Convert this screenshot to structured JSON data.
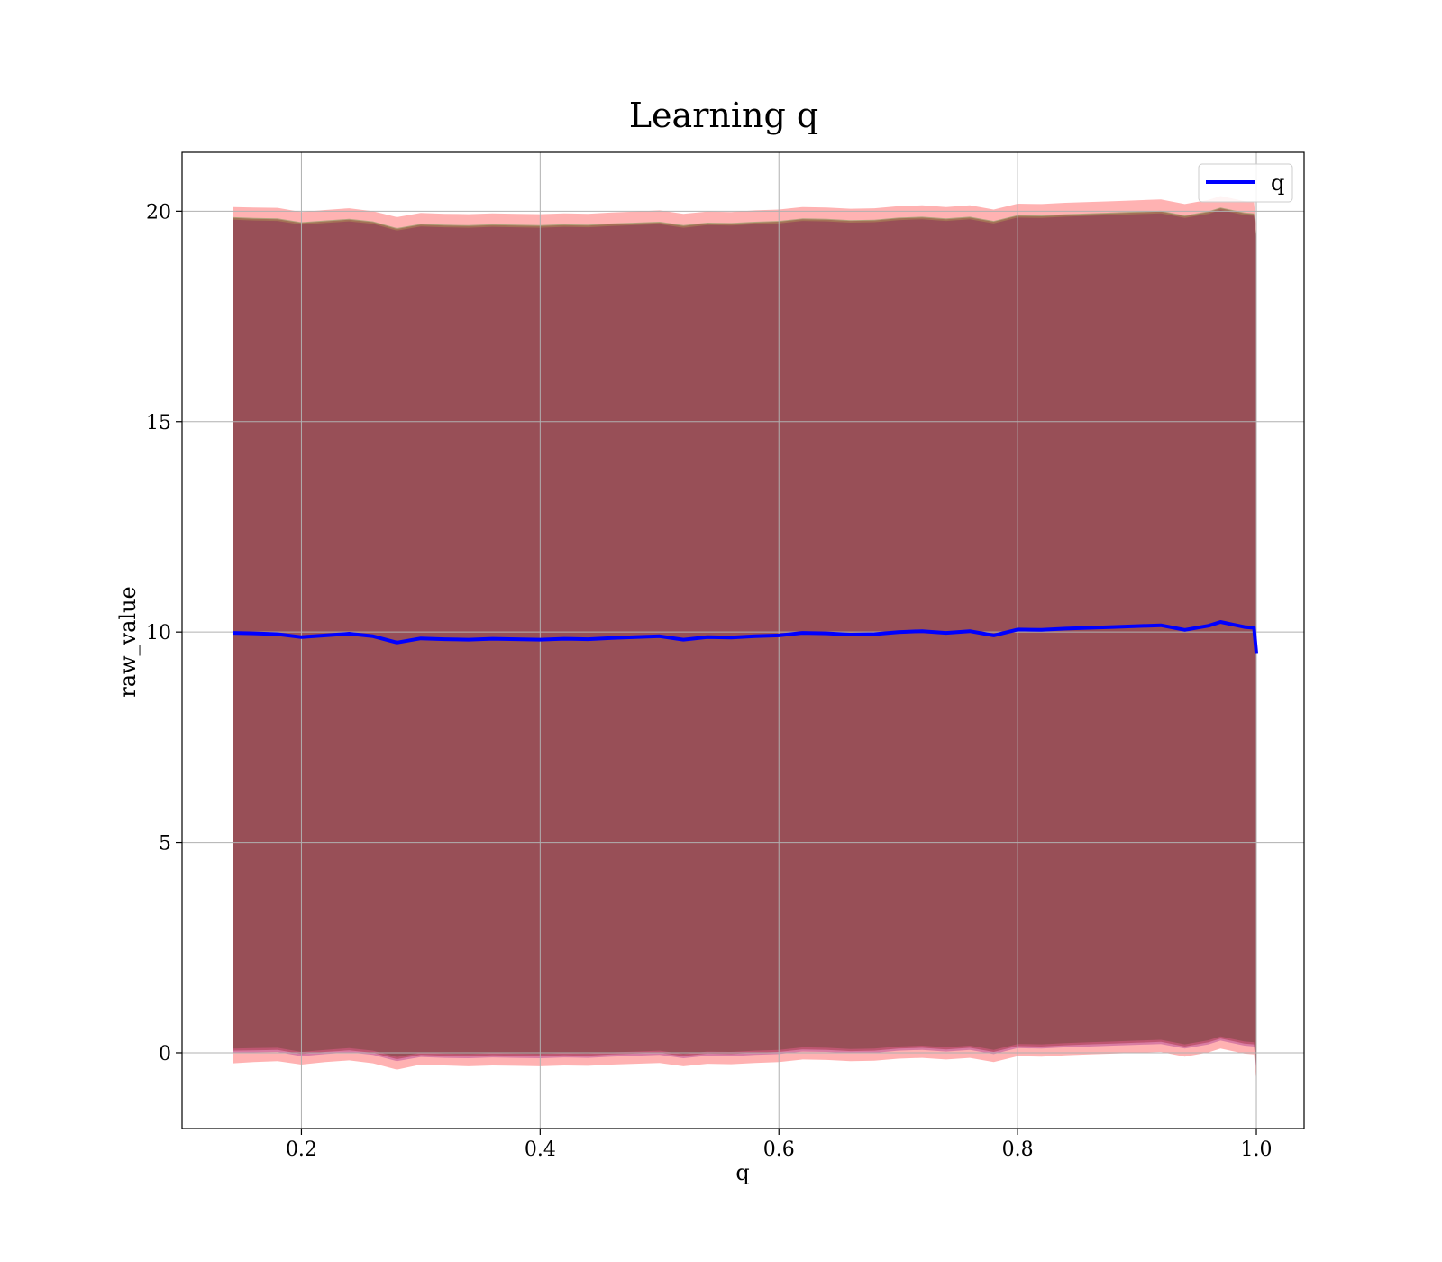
{
  "chart_data": {
    "type": "line",
    "title": "Learning q",
    "xlabel": "q",
    "ylabel": "raw_value",
    "xlim": [
      0.1,
      1.04
    ],
    "ylim": [
      -1.8,
      21.4
    ],
    "xticks": [
      0.2,
      0.4,
      0.6,
      0.8,
      1.0
    ],
    "xtick_labels": [
      "0.2",
      "0.4",
      "0.6",
      "0.8",
      "1.0"
    ],
    "yticks": [
      0,
      5,
      10,
      15,
      20
    ],
    "ytick_labels": [
      "0",
      "5",
      "10",
      "15",
      "20"
    ],
    "grid": true,
    "legend": {
      "position": "top-right",
      "entries": [
        "q"
      ]
    },
    "series": [
      {
        "name": "q",
        "color": "#0000ff",
        "x": [
          0.143,
          0.16,
          0.18,
          0.2,
          0.22,
          0.24,
          0.26,
          0.28,
          0.3,
          0.32,
          0.34,
          0.36,
          0.38,
          0.4,
          0.42,
          0.44,
          0.46,
          0.48,
          0.5,
          0.52,
          0.54,
          0.56,
          0.58,
          0.6,
          0.62,
          0.64,
          0.66,
          0.68,
          0.7,
          0.72,
          0.74,
          0.76,
          0.78,
          0.8,
          0.82,
          0.84,
          0.86,
          0.88,
          0.9,
          0.92,
          0.94,
          0.96,
          0.97,
          0.98,
          0.99,
          0.998,
          1.0
        ],
        "y": [
          9.98,
          9.97,
          9.95,
          9.88,
          9.92,
          9.96,
          9.9,
          9.75,
          9.85,
          9.83,
          9.82,
          9.84,
          9.83,
          9.82,
          9.84,
          9.83,
          9.86,
          9.88,
          9.9,
          9.82,
          9.88,
          9.87,
          9.9,
          9.92,
          9.98,
          9.97,
          9.94,
          9.95,
          10.0,
          10.02,
          9.98,
          10.02,
          9.92,
          10.06,
          10.05,
          10.08,
          10.1,
          10.12,
          10.14,
          10.16,
          10.05,
          10.15,
          10.24,
          10.18,
          10.12,
          10.1,
          9.5
        ]
      }
    ],
    "bands": [
      {
        "color": "#ff0000",
        "opacity": 0.3,
        "lower": [
          -0.25,
          -0.22,
          -0.2,
          -0.28,
          -0.22,
          -0.18,
          -0.25,
          -0.4,
          -0.28,
          -0.3,
          -0.32,
          -0.3,
          -0.31,
          -0.32,
          -0.3,
          -0.31,
          -0.28,
          -0.26,
          -0.24,
          -0.32,
          -0.26,
          -0.27,
          -0.24,
          -0.22,
          -0.16,
          -0.17,
          -0.2,
          -0.19,
          -0.14,
          -0.12,
          -0.16,
          -0.12,
          -0.22,
          -0.08,
          -0.09,
          -0.06,
          -0.04,
          -0.02,
          0.0,
          0.02,
          -0.09,
          0.01,
          0.1,
          0.04,
          -0.02,
          -0.04,
          -0.7
        ],
        "upper": [
          20.1,
          20.09,
          20.08,
          19.98,
          20.03,
          20.07,
          20.0,
          19.86,
          19.96,
          19.94,
          19.93,
          19.95,
          19.94,
          19.93,
          19.95,
          19.94,
          19.97,
          19.99,
          20.02,
          19.94,
          19.99,
          19.98,
          20.02,
          20.04,
          20.1,
          20.09,
          20.06,
          20.07,
          20.12,
          20.14,
          20.1,
          20.14,
          20.04,
          20.18,
          20.17,
          20.2,
          20.22,
          20.24,
          20.26,
          20.28,
          20.17,
          20.27,
          20.36,
          20.3,
          20.24,
          20.22,
          19.6
        ]
      },
      {
        "color": "#008000",
        "opacity": 0.3,
        "lower": [
          0.1,
          0.11,
          0.12,
          0.02,
          0.07,
          0.11,
          0.05,
          -0.1,
          0.0,
          -0.02,
          -0.03,
          -0.01,
          -0.02,
          -0.03,
          -0.01,
          -0.02,
          0.01,
          0.03,
          0.05,
          -0.03,
          0.03,
          0.02,
          0.05,
          0.07,
          0.13,
          0.12,
          0.09,
          0.1,
          0.15,
          0.17,
          0.13,
          0.17,
          0.07,
          0.21,
          0.2,
          0.23,
          0.25,
          0.27,
          0.29,
          0.31,
          0.2,
          0.3,
          0.39,
          0.33,
          0.27,
          0.25,
          -0.35
        ],
        "upper": [
          19.86,
          19.84,
          19.83,
          19.74,
          19.78,
          19.82,
          19.76,
          19.6,
          19.7,
          19.68,
          19.67,
          19.69,
          19.68,
          19.67,
          19.69,
          19.68,
          19.71,
          19.73,
          19.75,
          19.67,
          19.73,
          19.72,
          19.75,
          19.77,
          19.83,
          19.82,
          19.79,
          19.8,
          19.85,
          19.87,
          19.83,
          19.87,
          19.77,
          19.91,
          19.9,
          19.93,
          19.95,
          19.97,
          19.99,
          20.01,
          19.9,
          20.0,
          20.09,
          20.03,
          19.97,
          19.95,
          19.35
        ]
      },
      {
        "color": "#800080",
        "opacity": 0.3,
        "lower": [
          0.0,
          0.01,
          0.02,
          -0.08,
          -0.03,
          0.01,
          -0.05,
          -0.2,
          -0.1,
          -0.12,
          -0.13,
          -0.11,
          -0.12,
          -0.13,
          -0.11,
          -0.12,
          -0.09,
          -0.07,
          -0.05,
          -0.13,
          -0.07,
          -0.08,
          -0.05,
          -0.03,
          0.03,
          0.02,
          -0.01,
          0.0,
          0.05,
          0.07,
          0.03,
          0.07,
          -0.03,
          0.11,
          0.1,
          0.13,
          0.15,
          0.17,
          0.19,
          0.21,
          0.1,
          0.2,
          0.29,
          0.23,
          0.17,
          0.15,
          -0.45
        ],
        "upper": [
          19.8,
          19.78,
          19.77,
          19.68,
          19.72,
          19.76,
          19.7,
          19.54,
          19.64,
          19.62,
          19.61,
          19.63,
          19.62,
          19.61,
          19.63,
          19.62,
          19.65,
          19.67,
          19.69,
          19.61,
          19.67,
          19.66,
          19.69,
          19.71,
          19.77,
          19.76,
          19.73,
          19.74,
          19.79,
          19.81,
          19.77,
          19.81,
          19.71,
          19.85,
          19.84,
          19.87,
          19.89,
          19.91,
          19.93,
          19.95,
          19.84,
          19.94,
          20.03,
          19.97,
          19.91,
          19.89,
          19.29
        ]
      },
      {
        "color": "#800000",
        "opacity": 0.3,
        "lower": [
          0.05,
          0.06,
          0.07,
          -0.03,
          0.02,
          0.06,
          0.0,
          -0.15,
          -0.05,
          -0.07,
          -0.08,
          -0.06,
          -0.07,
          -0.08,
          -0.06,
          -0.07,
          -0.04,
          -0.02,
          0.0,
          -0.08,
          -0.02,
          -0.03,
          0.0,
          0.02,
          0.08,
          0.07,
          0.04,
          0.05,
          0.1,
          0.12,
          0.08,
          0.12,
          0.02,
          0.16,
          0.15,
          0.18,
          0.2,
          0.22,
          0.24,
          0.26,
          0.15,
          0.25,
          0.34,
          0.28,
          0.22,
          0.2,
          -0.4
        ],
        "upper": [
          19.84,
          19.82,
          19.81,
          19.72,
          19.76,
          19.8,
          19.74,
          19.58,
          19.68,
          19.66,
          19.65,
          19.67,
          19.66,
          19.65,
          19.67,
          19.66,
          19.69,
          19.71,
          19.73,
          19.65,
          19.71,
          19.7,
          19.73,
          19.75,
          19.81,
          19.8,
          19.77,
          19.78,
          19.83,
          19.85,
          19.81,
          19.85,
          19.75,
          19.89,
          19.88,
          19.91,
          19.93,
          19.95,
          19.97,
          19.99,
          19.88,
          19.98,
          20.07,
          20.01,
          19.95,
          19.93,
          19.33
        ]
      }
    ]
  }
}
